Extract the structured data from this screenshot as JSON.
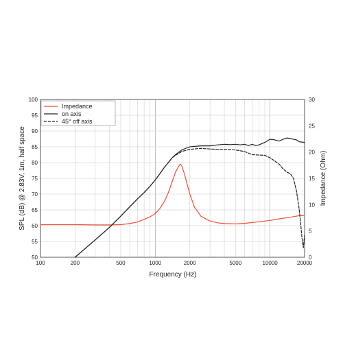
{
  "chart_data": {
    "type": "line",
    "title": "",
    "xlabel": "Frequency (Hz)",
    "ylabel_left": "SPL (dB) @ 2.83V, 1m, half space",
    "ylabel_right": "Impedance (Ohm)",
    "x_scale": "log",
    "xlim": [
      100,
      20000
    ],
    "ylim_left": [
      50,
      100
    ],
    "ylim_right": [
      0,
      30
    ],
    "grid": true,
    "legend_position": "top-left",
    "x_ticks": [
      "100",
      "200",
      "500",
      "1000",
      "2000",
      "5000",
      "10000",
      "20000"
    ],
    "y_ticks_left": [
      "50",
      "55",
      "60",
      "65",
      "70",
      "75",
      "80",
      "85",
      "90",
      "95",
      "100"
    ],
    "y_ticks_right": [
      "0",
      "5",
      "10",
      "15",
      "20",
      "25",
      "30"
    ],
    "series": [
      {
        "name": "Impedance",
        "axis": "right",
        "color": "#e8503a",
        "style": "solid",
        "points": [
          [
            100,
            6.2
          ],
          [
            200,
            6.2
          ],
          [
            300,
            6.15
          ],
          [
            400,
            6.15
          ],
          [
            500,
            6.2
          ],
          [
            600,
            6.4
          ],
          [
            700,
            6.7
          ],
          [
            800,
            7.2
          ],
          [
            900,
            7.7
          ],
          [
            1000,
            8.3
          ],
          [
            1100,
            9.3
          ],
          [
            1200,
            10.6
          ],
          [
            1300,
            12.3
          ],
          [
            1400,
            14.3
          ],
          [
            1500,
            16.2
          ],
          [
            1600,
            17.3
          ],
          [
            1650,
            17.7
          ],
          [
            1700,
            17.4
          ],
          [
            1800,
            15.8
          ],
          [
            1900,
            13.8
          ],
          [
            2000,
            12.0
          ],
          [
            2200,
            9.5
          ],
          [
            2500,
            7.8
          ],
          [
            3000,
            6.9
          ],
          [
            3500,
            6.55
          ],
          [
            4000,
            6.4
          ],
          [
            5000,
            6.35
          ],
          [
            6000,
            6.45
          ],
          [
            7000,
            6.6
          ],
          [
            8000,
            6.75
          ],
          [
            10000,
            7.0
          ],
          [
            12000,
            7.3
          ],
          [
            15000,
            7.6
          ],
          [
            18000,
            7.9
          ],
          [
            20000,
            7.9
          ]
        ]
      },
      {
        "name": "on axis",
        "axis": "left",
        "color": "#222222",
        "style": "solid",
        "points": [
          [
            200,
            50
          ],
          [
            300,
            55.5
          ],
          [
            400,
            59.5
          ],
          [
            500,
            63
          ],
          [
            600,
            66
          ],
          [
            700,
            68.5
          ],
          [
            800,
            70.5
          ],
          [
            900,
            72.5
          ],
          [
            1000,
            74.5
          ],
          [
            1100,
            76.5
          ],
          [
            1200,
            78.5
          ],
          [
            1300,
            80
          ],
          [
            1400,
            81.5
          ],
          [
            1500,
            82.5
          ],
          [
            1700,
            84
          ],
          [
            2000,
            85
          ],
          [
            2500,
            85.3
          ],
          [
            3000,
            85.3
          ],
          [
            3500,
            85.6
          ],
          [
            4000,
            85.8
          ],
          [
            4500,
            85.7
          ],
          [
            5000,
            85.8
          ],
          [
            5500,
            85.6
          ],
          [
            6000,
            85.8
          ],
          [
            6500,
            85.4
          ],
          [
            7000,
            85.8
          ],
          [
            7500,
            85.4
          ],
          [
            8000,
            85.6
          ],
          [
            9000,
            86.4
          ],
          [
            10000,
            87.4
          ],
          [
            11000,
            87.2
          ],
          [
            12000,
            86.8
          ],
          [
            13000,
            87.4
          ],
          [
            14000,
            87.8
          ],
          [
            15000,
            87.6
          ],
          [
            17000,
            87.2
          ],
          [
            18000,
            86.6
          ],
          [
            20000,
            86.4
          ]
        ]
      },
      {
        "name": "45° off axis",
        "axis": "left",
        "color": "#222222",
        "style": "dashed",
        "points": [
          [
            200,
            50
          ],
          [
            300,
            55.5
          ],
          [
            400,
            59.5
          ],
          [
            500,
            63
          ],
          [
            600,
            66
          ],
          [
            700,
            68.5
          ],
          [
            800,
            70.5
          ],
          [
            900,
            72.5
          ],
          [
            1000,
            74.5
          ],
          [
            1100,
            76.5
          ],
          [
            1200,
            78.5
          ],
          [
            1300,
            80
          ],
          [
            1400,
            81.5
          ],
          [
            1500,
            82.3
          ],
          [
            1700,
            83.5
          ],
          [
            2000,
            84.2
          ],
          [
            2500,
            84.5
          ],
          [
            3000,
            84.3
          ],
          [
            3500,
            84.2
          ],
          [
            4000,
            84.2
          ],
          [
            5000,
            84
          ],
          [
            6000,
            83.5
          ],
          [
            7000,
            82.5
          ],
          [
            8000,
            82.4
          ],
          [
            9000,
            82.3
          ],
          [
            10000,
            81.5
          ],
          [
            11000,
            80.5
          ],
          [
            12000,
            79.5
          ],
          [
            13000,
            78
          ],
          [
            14000,
            77
          ],
          [
            15000,
            76.5
          ],
          [
            16000,
            75
          ],
          [
            17000,
            71
          ],
          [
            18000,
            65
          ],
          [
            19000,
            56
          ],
          [
            19500,
            53
          ],
          [
            20000,
            57
          ]
        ]
      }
    ]
  }
}
